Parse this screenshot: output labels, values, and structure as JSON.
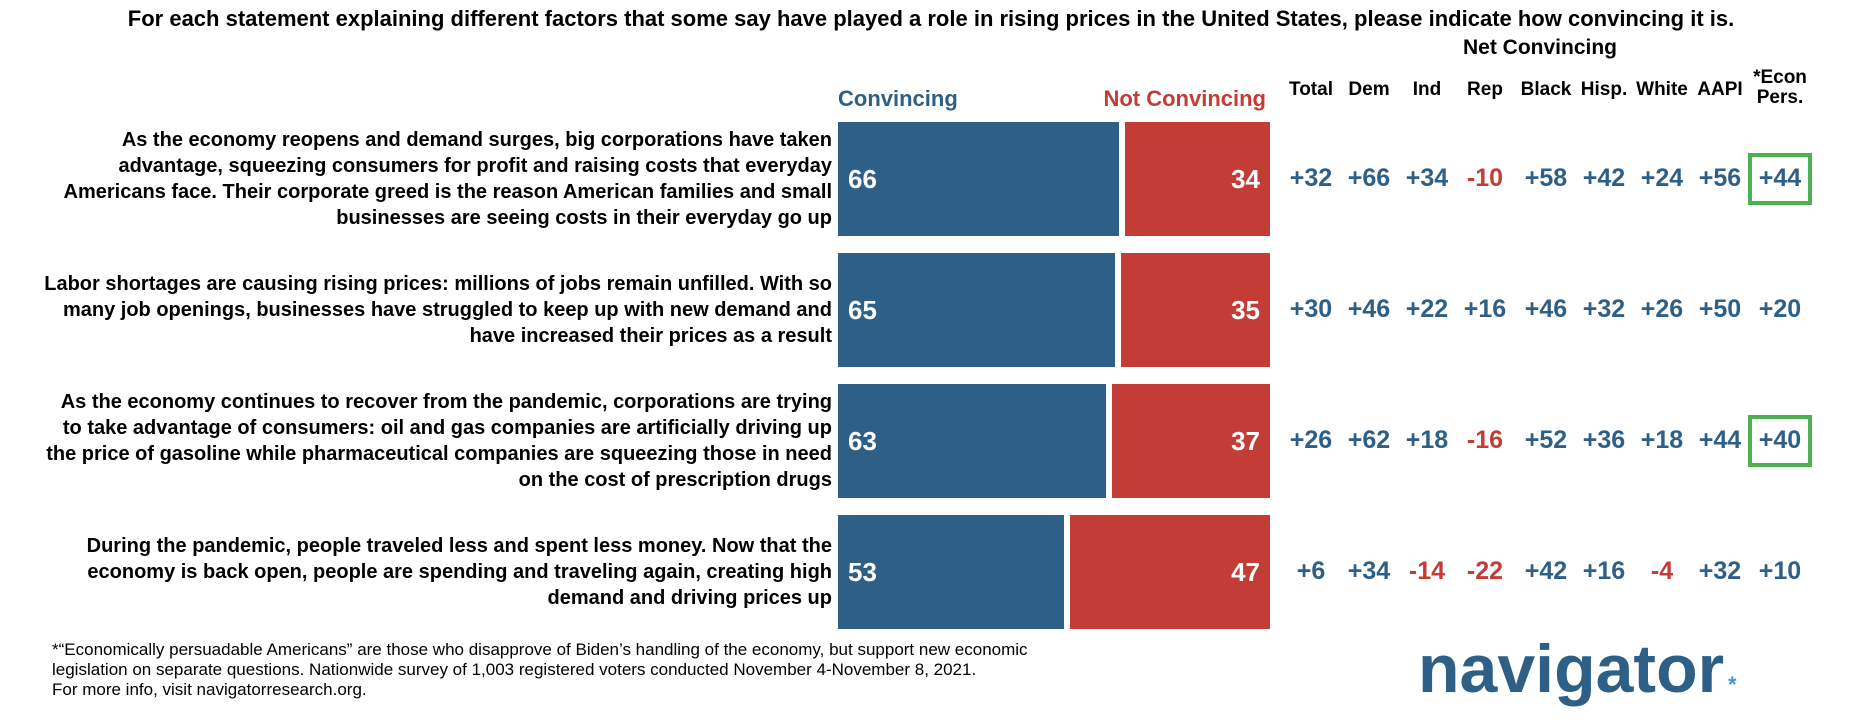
{
  "chart_data": {
    "type": "bar",
    "title": "For each statement explaining different factors that some say have played a role in rising prices in the United States, please indicate how convincing it is.",
    "net_title": "Net Convincing",
    "legend": {
      "convincing": "Convincing",
      "not_convincing": "Not Convincing"
    },
    "columns": [
      "Total",
      "Dem",
      "Ind",
      "Rep",
      "Black",
      "Hisp.",
      "White",
      "AAPI",
      "*Econ Pers."
    ],
    "rows": [
      {
        "statement": "As the economy reopens and demand surges, big corporations have taken advantage, squeezing consumers for profit and raising costs that everyday Americans face. Their corporate greed is the reason American families and small businesses are seeing costs in their everyday go up",
        "convincing": 66,
        "not_convincing": 34,
        "net": [
          "+32",
          "+66",
          "+34",
          "-10",
          "+58",
          "+42",
          "+24",
          "+56",
          "+44"
        ],
        "highlight_last": true
      },
      {
        "statement": "Labor shortages are causing rising prices: millions of jobs remain unfilled. With so many job openings, businesses have struggled to keep up with new demand and have increased their prices as a result",
        "convincing": 65,
        "not_convincing": 35,
        "net": [
          "+30",
          "+46",
          "+22",
          "+16",
          "+46",
          "+32",
          "+26",
          "+50",
          "+20"
        ],
        "highlight_last": false
      },
      {
        "statement": "As the economy continues to recover from the pandemic, corporations are trying to take advantage of consumers: oil and gas companies are artificially driving up the price of gasoline while pharmaceutical companies are squeezing those in need on the cost of prescription drugs",
        "convincing": 63,
        "not_convincing": 37,
        "net": [
          "+26",
          "+62",
          "+18",
          "-16",
          "+52",
          "+36",
          "+18",
          "+44",
          "+40"
        ],
        "highlight_last": true
      },
      {
        "statement": "During the pandemic, people traveled less and spent less money. Now that the economy is back open, people are spending and traveling again, creating high demand and driving prices up",
        "convincing": 53,
        "not_convincing": 47,
        "net": [
          "+6",
          "+34",
          "-14",
          "-22",
          "+42",
          "+16",
          "-4",
          "+32",
          "+10"
        ],
        "highlight_last": false
      }
    ],
    "colors": {
      "convincing": "#2d5f87",
      "not_convincing": "#c33c35",
      "highlight": "#4caf50"
    }
  },
  "footnote": {
    "line1": "*“Economically persuadable Americans” are those who disapprove of Biden’s handling of the economy, but support new economic",
    "line2": "legislation on separate questions. Nationwide survey of 1,003 registered voters conducted November 4-November 8, 2021.",
    "line3": "For more info, visit navigatorresearch.org."
  },
  "logo": {
    "text": "navigator",
    "mark": "*"
  }
}
